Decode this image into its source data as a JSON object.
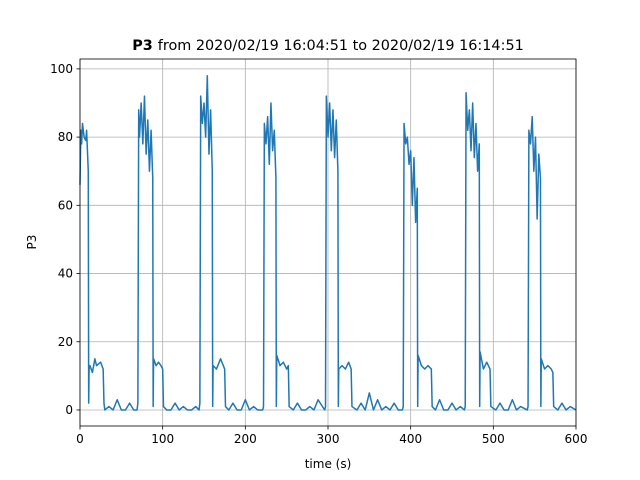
{
  "chart_data": {
    "type": "line",
    "title_parts": [
      "P3",
      "from 2020/02/19 16:04:51 to 2020/02/19 16:14:51"
    ],
    "xlabel": "time (s)",
    "ylabel": "P3",
    "xlim": [
      0,
      600
    ],
    "ylim": [
      -4.7,
      102.9
    ],
    "xticks": [
      0,
      100,
      200,
      300,
      400,
      500,
      600
    ],
    "yticks": [
      0,
      20,
      40,
      60,
      80,
      100
    ],
    "grid": true,
    "color": "#1f77b4",
    "x": [
      0,
      1,
      2,
      3,
      5,
      7,
      8,
      10,
      10.5,
      11,
      12,
      15,
      18,
      20,
      25,
      28,
      29,
      30,
      35,
      40,
      45,
      50,
      55,
      60,
      65,
      69,
      70,
      71,
      72,
      74,
      76,
      78,
      80,
      82,
      84,
      86,
      88,
      88.5,
      89,
      92,
      95,
      98,
      100,
      101,
      105,
      110,
      115,
      120,
      125,
      130,
      135,
      140,
      144,
      145,
      146,
      148,
      150,
      152,
      154,
      156,
      158,
      160,
      160.5,
      161,
      165,
      170,
      175,
      176,
      180,
      185,
      190,
      195,
      200,
      205,
      210,
      215,
      221,
      222,
      223,
      225,
      227,
      229,
      231,
      233,
      235,
      237,
      237.5,
      238,
      242,
      246,
      250,
      252,
      253,
      258,
      263,
      268,
      273,
      278,
      283,
      288,
      296,
      297,
      298,
      300,
      302,
      304,
      306,
      308,
      310,
      312,
      312.5,
      313,
      317,
      321,
      325,
      328,
      329,
      335,
      340,
      345,
      350,
      355,
      360,
      365,
      370,
      375,
      380,
      385,
      390,
      391,
      392,
      394,
      396,
      398,
      400,
      402,
      404,
      406,
      408,
      408.5,
      409,
      413,
      417,
      421,
      425,
      426,
      430,
      435,
      440,
      445,
      450,
      455,
      460,
      465,
      466,
      467,
      469,
      471,
      473,
      475,
      477,
      479,
      481,
      483,
      483.5,
      484,
      488,
      492,
      496,
      497,
      503,
      508,
      513,
      518,
      523,
      528,
      533,
      541,
      542,
      543,
      545,
      547,
      549,
      551,
      553,
      555,
      557,
      557.5,
      558,
      562,
      566,
      570,
      572,
      573,
      578,
      583,
      588,
      593,
      600
    ],
    "values": [
      66,
      82,
      78,
      84,
      80,
      79,
      82,
      70,
      2,
      12,
      13,
      11,
      15,
      13,
      14,
      12,
      2,
      0,
      1,
      0,
      3,
      0,
      0,
      2,
      0,
      0,
      2,
      88,
      80,
      90,
      78,
      92,
      75,
      85,
      70,
      82,
      68,
      1,
      15,
      13,
      14,
      13,
      12,
      1,
      0,
      0,
      2,
      0,
      1,
      0,
      0,
      1,
      0,
      2,
      92,
      84,
      90,
      80,
      98,
      75,
      88,
      70,
      1,
      13,
      12,
      15,
      12,
      1,
      0,
      2,
      0,
      0,
      3,
      0,
      1,
      0,
      0,
      1,
      84,
      78,
      86,
      72,
      90,
      76,
      82,
      68,
      1,
      16,
      13,
      14,
      12,
      13,
      1,
      0,
      2,
      0,
      0,
      1,
      0,
      3,
      0,
      1,
      92,
      80,
      90,
      76,
      88,
      74,
      85,
      70,
      1,
      12,
      13,
      12,
      14,
      12,
      1,
      0,
      2,
      0,
      5,
      0,
      3,
      0,
      1,
      0,
      2,
      0,
      0,
      1,
      84,
      78,
      80,
      72,
      76,
      60,
      74,
      55,
      65,
      1,
      16,
      13,
      12,
      13,
      12,
      1,
      0,
      3,
      0,
      0,
      2,
      0,
      1,
      0,
      1,
      93,
      82,
      88,
      76,
      90,
      74,
      84,
      70,
      78,
      1,
      17,
      12,
      14,
      12,
      1,
      0,
      2,
      0,
      0,
      3,
      0,
      1,
      0,
      1,
      82,
      78,
      86,
      70,
      80,
      56,
      75,
      68,
      1,
      15,
      12,
      13,
      12,
      11,
      1,
      0,
      2,
      0,
      1,
      0
    ]
  }
}
